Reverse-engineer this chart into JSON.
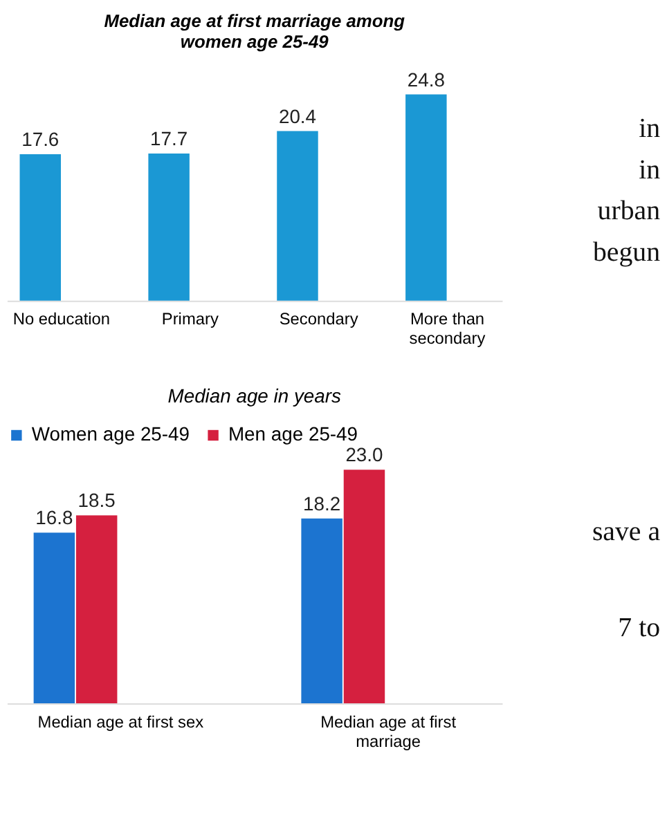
{
  "chart_data": [
    {
      "type": "bar",
      "title": [
        "Median age at first marriage among",
        "women age 25-49"
      ],
      "categories": [
        "No education",
        "Primary",
        "Secondary",
        "More than secondary"
      ],
      "series": [
        {
          "color": "#1b98d4",
          "values": [
            17.6,
            17.7,
            20.4,
            24.8
          ],
          "value_labels": [
            "17.6",
            "17.7",
            "20.4",
            "24.8"
          ]
        }
      ],
      "legend": false,
      "grid": false,
      "annotations": [
        "in",
        "in",
        "urban",
        "begun"
      ]
    },
    {
      "type": "bar",
      "title": "Median age in years",
      "categories": [
        "Median age at first sex",
        "Median age at first marriage"
      ],
      "series": [
        {
          "name": "Women age 25-49",
          "color": "#1c74d0",
          "values": [
            16.8,
            18.2
          ],
          "value_labels": [
            "16.8",
            "18.2"
          ]
        },
        {
          "name": "Men age 25-49",
          "color": "#d5203f",
          "values": [
            18.5,
            23.0
          ],
          "value_labels": [
            "18.5",
            "23.0"
          ]
        }
      ],
      "legend": "top",
      "grid": false,
      "annotations": [
        "save a",
        "7    to"
      ]
    }
  ]
}
